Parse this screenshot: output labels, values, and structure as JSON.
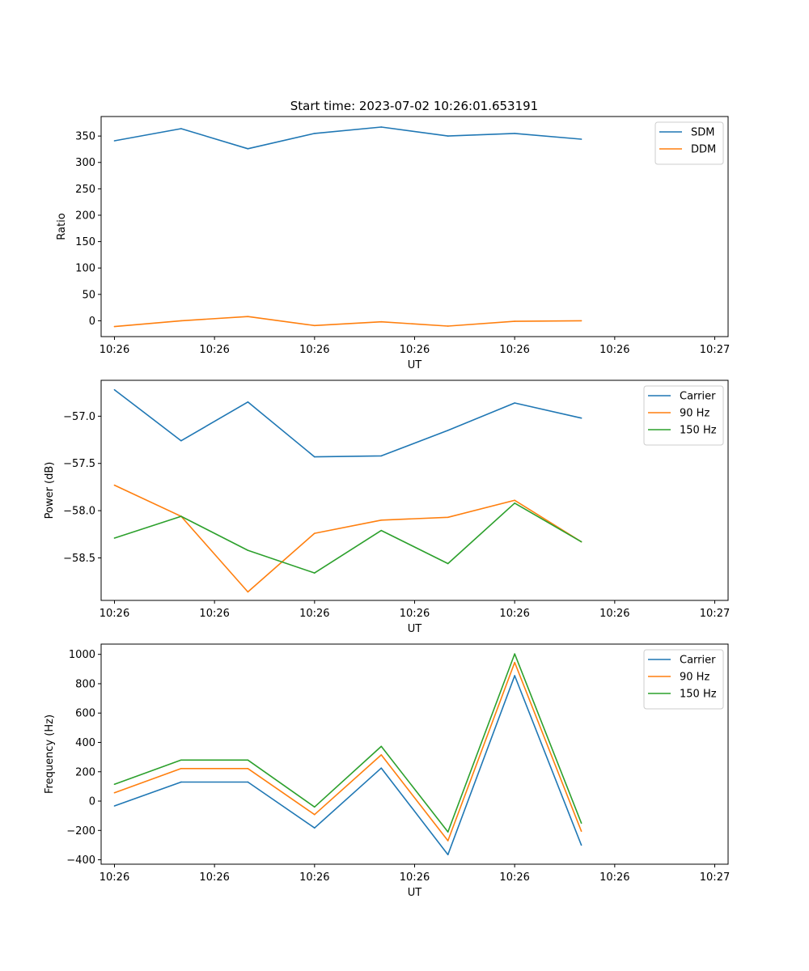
{
  "figure_title": "Start time: 2023-07-02 10:26:01.653191",
  "colors": {
    "blue": "#1f77b4",
    "orange": "#ff7f0e",
    "green": "#2ca02c"
  },
  "chart_data": [
    {
      "type": "line",
      "title": "Start time: 2023-07-02 10:26:01.653191",
      "xlabel": "UT",
      "ylabel": "Ratio",
      "x": [
        1,
        2,
        3,
        4,
        5,
        6,
        7,
        8
      ],
      "xlim": [
        0.8,
        10.2
      ],
      "xticks": [
        1,
        2.5,
        4,
        5.5,
        7,
        8.5,
        10
      ],
      "xtick_labels": [
        "10:26",
        "10:26",
        "10:26",
        "10:26",
        "10:26",
        "10:26",
        "10:27"
      ],
      "ylim": [
        -30,
        387
      ],
      "yticks": [
        0,
        50,
        100,
        150,
        200,
        250,
        300,
        350
      ],
      "ytick_labels": [
        "0",
        "50",
        "100",
        "150",
        "200",
        "250",
        "300",
        "350"
      ],
      "legend_position": "top-right",
      "series": [
        {
          "name": "SDM",
          "color": "#1f77b4",
          "values": [
            341,
            364,
            326,
            355,
            367,
            350,
            355,
            344
          ]
        },
        {
          "name": "DDM",
          "color": "#ff7f0e",
          "values": [
            -11,
            0,
            8,
            -9,
            -2,
            -10,
            -1,
            0
          ]
        }
      ]
    },
    {
      "type": "line",
      "title": "",
      "xlabel": "UT",
      "ylabel": "Power (dB)",
      "x": [
        1,
        2,
        3,
        4,
        5,
        6,
        7,
        8
      ],
      "xlim": [
        0.8,
        10.2
      ],
      "xticks": [
        1,
        2.5,
        4,
        5.5,
        7,
        8.5,
        10
      ],
      "xtick_labels": [
        "10:26",
        "10:26",
        "10:26",
        "10:26",
        "10:26",
        "10:26",
        "10:27"
      ],
      "ylim": [
        -58.95,
        -56.62
      ],
      "yticks": [
        -58.5,
        -58.0,
        -57.5,
        -57.0
      ],
      "ytick_labels": [
        "−58.5",
        "−58.0",
        "−57.5",
        "−57.0"
      ],
      "legend_position": "top-right",
      "series": [
        {
          "name": "Carrier",
          "color": "#1f77b4",
          "values": [
            -56.72,
            -57.26,
            -56.85,
            -57.43,
            -57.42,
            -57.15,
            -56.86,
            -57.02
          ]
        },
        {
          "name": "90 Hz",
          "color": "#ff7f0e",
          "values": [
            -57.73,
            -58.06,
            -58.86,
            -58.24,
            -58.1,
            -58.07,
            -57.89,
            -58.33
          ]
        },
        {
          "name": "150 Hz",
          "color": "#2ca02c",
          "values": [
            -58.29,
            -58.06,
            -58.42,
            -58.66,
            -58.21,
            -58.56,
            -57.92,
            -58.33
          ]
        }
      ]
    },
    {
      "type": "line",
      "title": "",
      "xlabel": "UT",
      "ylabel": "Frequency (Hz)",
      "x": [
        1,
        2,
        3,
        4,
        5,
        6,
        7,
        8
      ],
      "xlim": [
        0.8,
        10.2
      ],
      "xticks": [
        1,
        2.5,
        4,
        5.5,
        7,
        8.5,
        10
      ],
      "xtick_labels": [
        "10:26",
        "10:26",
        "10:26",
        "10:26",
        "10:26",
        "10:26",
        "10:27"
      ],
      "ylim": [
        -430,
        1070
      ],
      "yticks": [
        -400,
        -200,
        0,
        200,
        400,
        600,
        800,
        1000
      ],
      "ytick_labels": [
        "−400",
        "−200",
        "0",
        "200",
        "400",
        "600",
        "800",
        "1000"
      ],
      "legend_position": "top-right",
      "series": [
        {
          "name": "Carrier",
          "color": "#1f77b4",
          "values": [
            -33,
            130,
            130,
            -183,
            225,
            -365,
            855,
            -300
          ]
        },
        {
          "name": "90 Hz",
          "color": "#ff7f0e",
          "values": [
            57,
            222,
            222,
            -92,
            315,
            -270,
            945,
            -205
          ]
        },
        {
          "name": "150 Hz",
          "color": "#2ca02c",
          "values": [
            115,
            280,
            280,
            -40,
            373,
            -210,
            1003,
            -150
          ]
        }
      ]
    }
  ]
}
